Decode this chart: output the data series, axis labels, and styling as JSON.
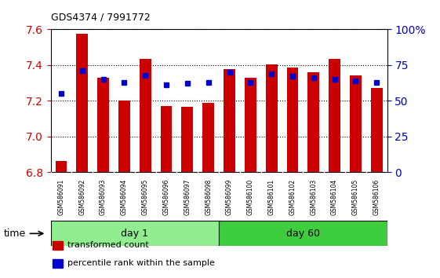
{
  "title": "GDS4374 / 7991772",
  "samples": [
    "GSM586091",
    "GSM586092",
    "GSM586093",
    "GSM586094",
    "GSM586095",
    "GSM586096",
    "GSM586097",
    "GSM586098",
    "GSM586099",
    "GSM586100",
    "GSM586101",
    "GSM586102",
    "GSM586103",
    "GSM586104",
    "GSM586105",
    "GSM586106"
  ],
  "red_values": [
    6.865,
    7.575,
    7.33,
    7.2,
    7.435,
    7.17,
    7.165,
    7.19,
    7.375,
    7.33,
    7.405,
    7.385,
    7.36,
    7.435,
    7.34,
    7.27
  ],
  "blue_percentiles": [
    55,
    71,
    65,
    63,
    68,
    61,
    62,
    63,
    70,
    63,
    69,
    67,
    66,
    65,
    64,
    63
  ],
  "ylim_left": [
    6.8,
    7.6
  ],
  "ylim_right": [
    0,
    100
  ],
  "yticks_left": [
    6.8,
    7.0,
    7.2,
    7.4,
    7.6
  ],
  "yticks_right": [
    0,
    25,
    50,
    75,
    100
  ],
  "ytick_right_labels": [
    "0",
    "25",
    "50",
    "75",
    "100%"
  ],
  "groups": [
    {
      "label": "day 1",
      "indices": [
        0,
        1,
        2,
        3,
        4,
        5,
        6,
        7
      ],
      "color": "#90EE90"
    },
    {
      "label": "day 60",
      "indices": [
        8,
        9,
        10,
        11,
        12,
        13,
        14,
        15
      ],
      "color": "#3ECD3E"
    }
  ],
  "bar_color": "#CC0000",
  "blue_color": "#0000CC",
  "bar_bottom": 6.8,
  "bar_width": 0.55,
  "grid_color": "#000000",
  "legend_items": [
    {
      "label": "transformed count",
      "color": "#CC0000"
    },
    {
      "label": "percentile rank within the sample",
      "color": "#0000CC"
    }
  ],
  "left_tick_color": "#CC0000",
  "right_tick_color": "#0000CC",
  "sample_box_color": "#C8C8C8",
  "figsize": [
    5.61,
    3.54
  ],
  "dpi": 100
}
